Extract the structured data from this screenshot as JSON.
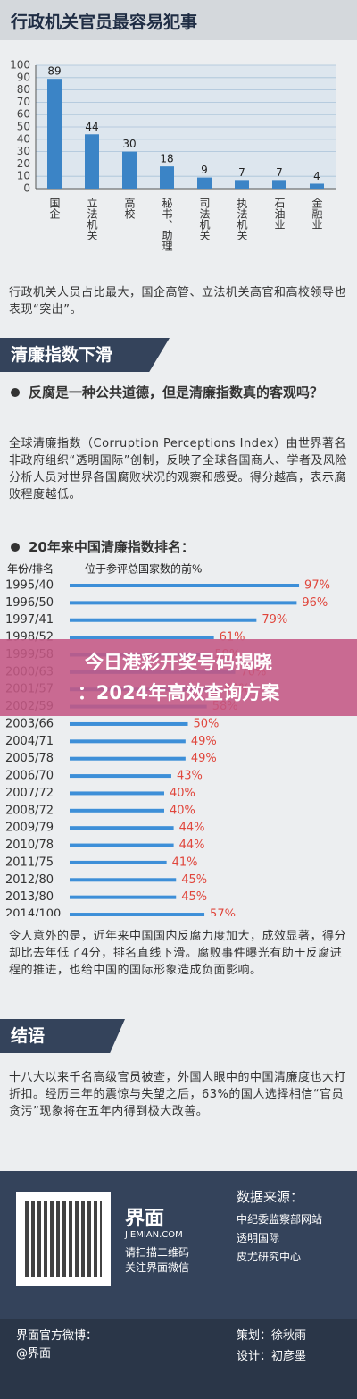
{
  "header": {
    "title": "行政机关官员最容易犯事"
  },
  "chart_data": [
    {
      "type": "bar",
      "orientation": "vertical",
      "categories": [
        "国企",
        "立法机关",
        "高校",
        "秘书、助理",
        "司法机关",
        "执法机关",
        "石油业",
        "金融业"
      ],
      "values": [
        89,
        44,
        30,
        18,
        9,
        7,
        7,
        4
      ],
      "color": "#3b84c6",
      "ylim": [
        0,
        100
      ],
      "yticks": [
        0,
        10,
        20,
        30,
        40,
        50,
        60,
        70,
        80,
        90,
        100
      ],
      "grid": true
    },
    {
      "type": "bar",
      "orientation": "horizontal",
      "category_header": "年份/排名",
      "value_header": "位于参评总国家数的前%",
      "categories": [
        "1995/40",
        "1996/50",
        "1997/41",
        "1998/52",
        "1999/58",
        "2000/63",
        "2001/57",
        "2002/59",
        "2003/66",
        "2004/71",
        "2005/78",
        "2006/70",
        "2007/72",
        "2008/72",
        "2009/79",
        "2010/78",
        "2011/75",
        "2012/80",
        "2013/80",
        "2014/100"
      ],
      "values": [
        97,
        96,
        79,
        61,
        59,
        70,
        63,
        58,
        50,
        49,
        49,
        43,
        40,
        40,
        44,
        44,
        41,
        45,
        45,
        57
      ],
      "value_labels": [
        "97%",
        "96%",
        "79%",
        "61%",
        "59%",
        "70%",
        "63%",
        "58%",
        "50%",
        "49%",
        "49%",
        "43%",
        "40%",
        "40%",
        "44%",
        "44%",
        "41%",
        "45%",
        "45%",
        "57%"
      ],
      "color": "#3d8fd8",
      "label_color": "#e0463c"
    }
  ],
  "note1": "行政机关人员占比最大，国企高管、立法机关高官和高校领导也表现“突出”。",
  "section2": {
    "title": "清廉指数下滑",
    "question": "反腐是一种公共道德，但是清廉指数真的客观吗？",
    "intro": "全球清廉指数（Corruption Perceptions Index）由世界著名非政府组织“透明国际”创制，反映了全球各国商人、学者及风险分析人员对世界各国腐败状况的观察和感受。得分越高，表示腐败程度越低。",
    "heading": "20年来中国清廉指数排名：",
    "note": "令人意外的是，近年来中国国内反腐力度加大，成效显著，得分却比去年低了4分，排名直线下滑。腐败事件曝光有助于反腐进程的推进，也给中国的国际形象造成负面影响。"
  },
  "section3": {
    "title": "结语",
    "text": "十八大以来千名高级官员被查，外国人眼中的中国清廉度也大打折扣。经历三年的震惊与失望之后，63%的国人选择相信“官员贪污”现象将在五年内得到极大改善。"
  },
  "footer": {
    "logo": "界面",
    "site": "JIEMIAN.COM",
    "scan": [
      "请扫描二维码",
      "关注界面微信"
    ],
    "sources_title": "数据来源：",
    "sources": [
      "中纪委监察部网站",
      "透明国际",
      "皮尤研究中心"
    ],
    "weibo_label": "界面官方微博：",
    "weibo": "@界面",
    "planner": "策划：徐秋雨",
    "designer": "设计：初彦墨"
  },
  "overlay": {
    "lines": [
      "今日港彩开奖号码揭晓",
      "：2024年高效查询方案"
    ]
  }
}
